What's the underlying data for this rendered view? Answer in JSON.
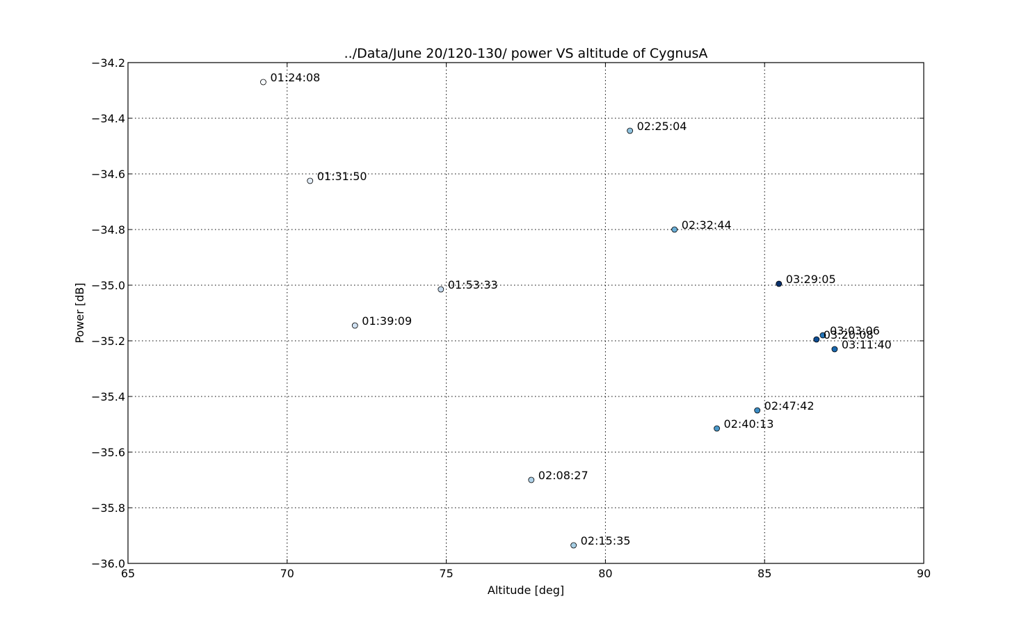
{
  "chart_data": {
    "type": "scatter",
    "title": "../Data/June 20/120-130/  power VS altitude of CygnusA",
    "xlabel": "Altitude [deg]",
    "ylabel": "Power [dB]",
    "xlim": [
      65,
      90
    ],
    "ylim": [
      -36.0,
      -34.2
    ],
    "xticks": [
      65,
      70,
      75,
      80,
      85,
      90
    ],
    "yticks": [
      -34.2,
      -34.4,
      -34.6,
      -34.8,
      -35.0,
      -35.2,
      -35.4,
      -35.6,
      -35.8,
      -36.0
    ],
    "xtick_labels": [
      "65",
      "70",
      "75",
      "80",
      "85",
      "90"
    ],
    "ytick_labels": [
      "−34.2",
      "−34.4",
      "−34.6",
      "−34.8",
      "−35.0",
      "−35.2",
      "−35.4",
      "−35.6",
      "−35.8",
      "−36.0"
    ],
    "grid": true,
    "colormap": "Blues",
    "points": [
      {
        "label": "01:24:08",
        "x": 69.25,
        "y": -34.27,
        "color": "#f7fbff"
      },
      {
        "label": "01:31:50",
        "x": 70.72,
        "y": -34.625,
        "color": "#e3eef9"
      },
      {
        "label": "01:39:09",
        "x": 72.13,
        "y": -35.145,
        "color": "#d0e1f2"
      },
      {
        "label": "01:53:33",
        "x": 74.83,
        "y": -35.015,
        "color": "#c6dbef"
      },
      {
        "label": "02:08:27",
        "x": 77.67,
        "y": -35.7,
        "color": "#b0d2e8"
      },
      {
        "label": "02:15:35",
        "x": 79.0,
        "y": -35.935,
        "color": "#a6cee4"
      },
      {
        "label": "02:25:04",
        "x": 80.77,
        "y": -34.445,
        "color": "#8fc2de"
      },
      {
        "label": "02:32:44",
        "x": 82.17,
        "y": -34.8,
        "color": "#6aaed6"
      },
      {
        "label": "02:40:13",
        "x": 83.5,
        "y": -35.515,
        "color": "#4a98c9"
      },
      {
        "label": "02:47:42",
        "x": 84.77,
        "y": -35.45,
        "color": "#3d8dc4"
      },
      {
        "label": "03:03:06",
        "x": 86.83,
        "y": -35.18,
        "color": "#2474b7"
      },
      {
        "label": "03:11:40",
        "x": 87.2,
        "y": -35.23,
        "color": "#1a68ae"
      },
      {
        "label": "03:20:08",
        "x": 86.63,
        "y": -35.195,
        "color": "#0e4d93"
      },
      {
        "label": "03:29:05",
        "x": 85.45,
        "y": -34.995,
        "color": "#08306b"
      }
    ]
  }
}
